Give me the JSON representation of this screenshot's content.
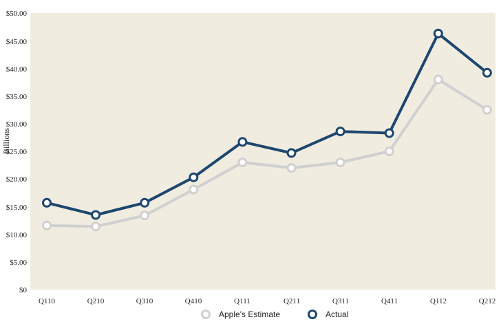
{
  "chart_data": {
    "type": "line",
    "categories": [
      "Q110",
      "Q210",
      "Q310",
      "Q410",
      "Q111",
      "Q211",
      "Q311",
      "Q411",
      "Q112",
      "Q212"
    ],
    "ylabel": "Billions",
    "ylim": [
      0,
      50
    ],
    "yticks": [
      0,
      5,
      10,
      15,
      20,
      25,
      30,
      35,
      40,
      45,
      50
    ],
    "ytick_labels": [
      "$0",
      "$5.00",
      "$10.00",
      "$15.00",
      "$20.00",
      "$25.00",
      "$30.00",
      "$35.00",
      "$40.00",
      "$45.00",
      "$50.00"
    ],
    "grid": false,
    "legend_position": "bottom",
    "plot_background": "#f1ece0",
    "series": [
      {
        "name": "Apple's Estimate",
        "color": "#d0d0d0",
        "values": [
          11.6,
          11.4,
          13.4,
          18.1,
          23.0,
          22.0,
          23.0,
          25.0,
          38.0,
          32.5
        ]
      },
      {
        "name": "Actual",
        "color": "#1d4670",
        "values": [
          15.7,
          13.5,
          15.7,
          20.3,
          26.7,
          24.7,
          28.6,
          28.3,
          46.3,
          39.2
        ]
      }
    ]
  }
}
